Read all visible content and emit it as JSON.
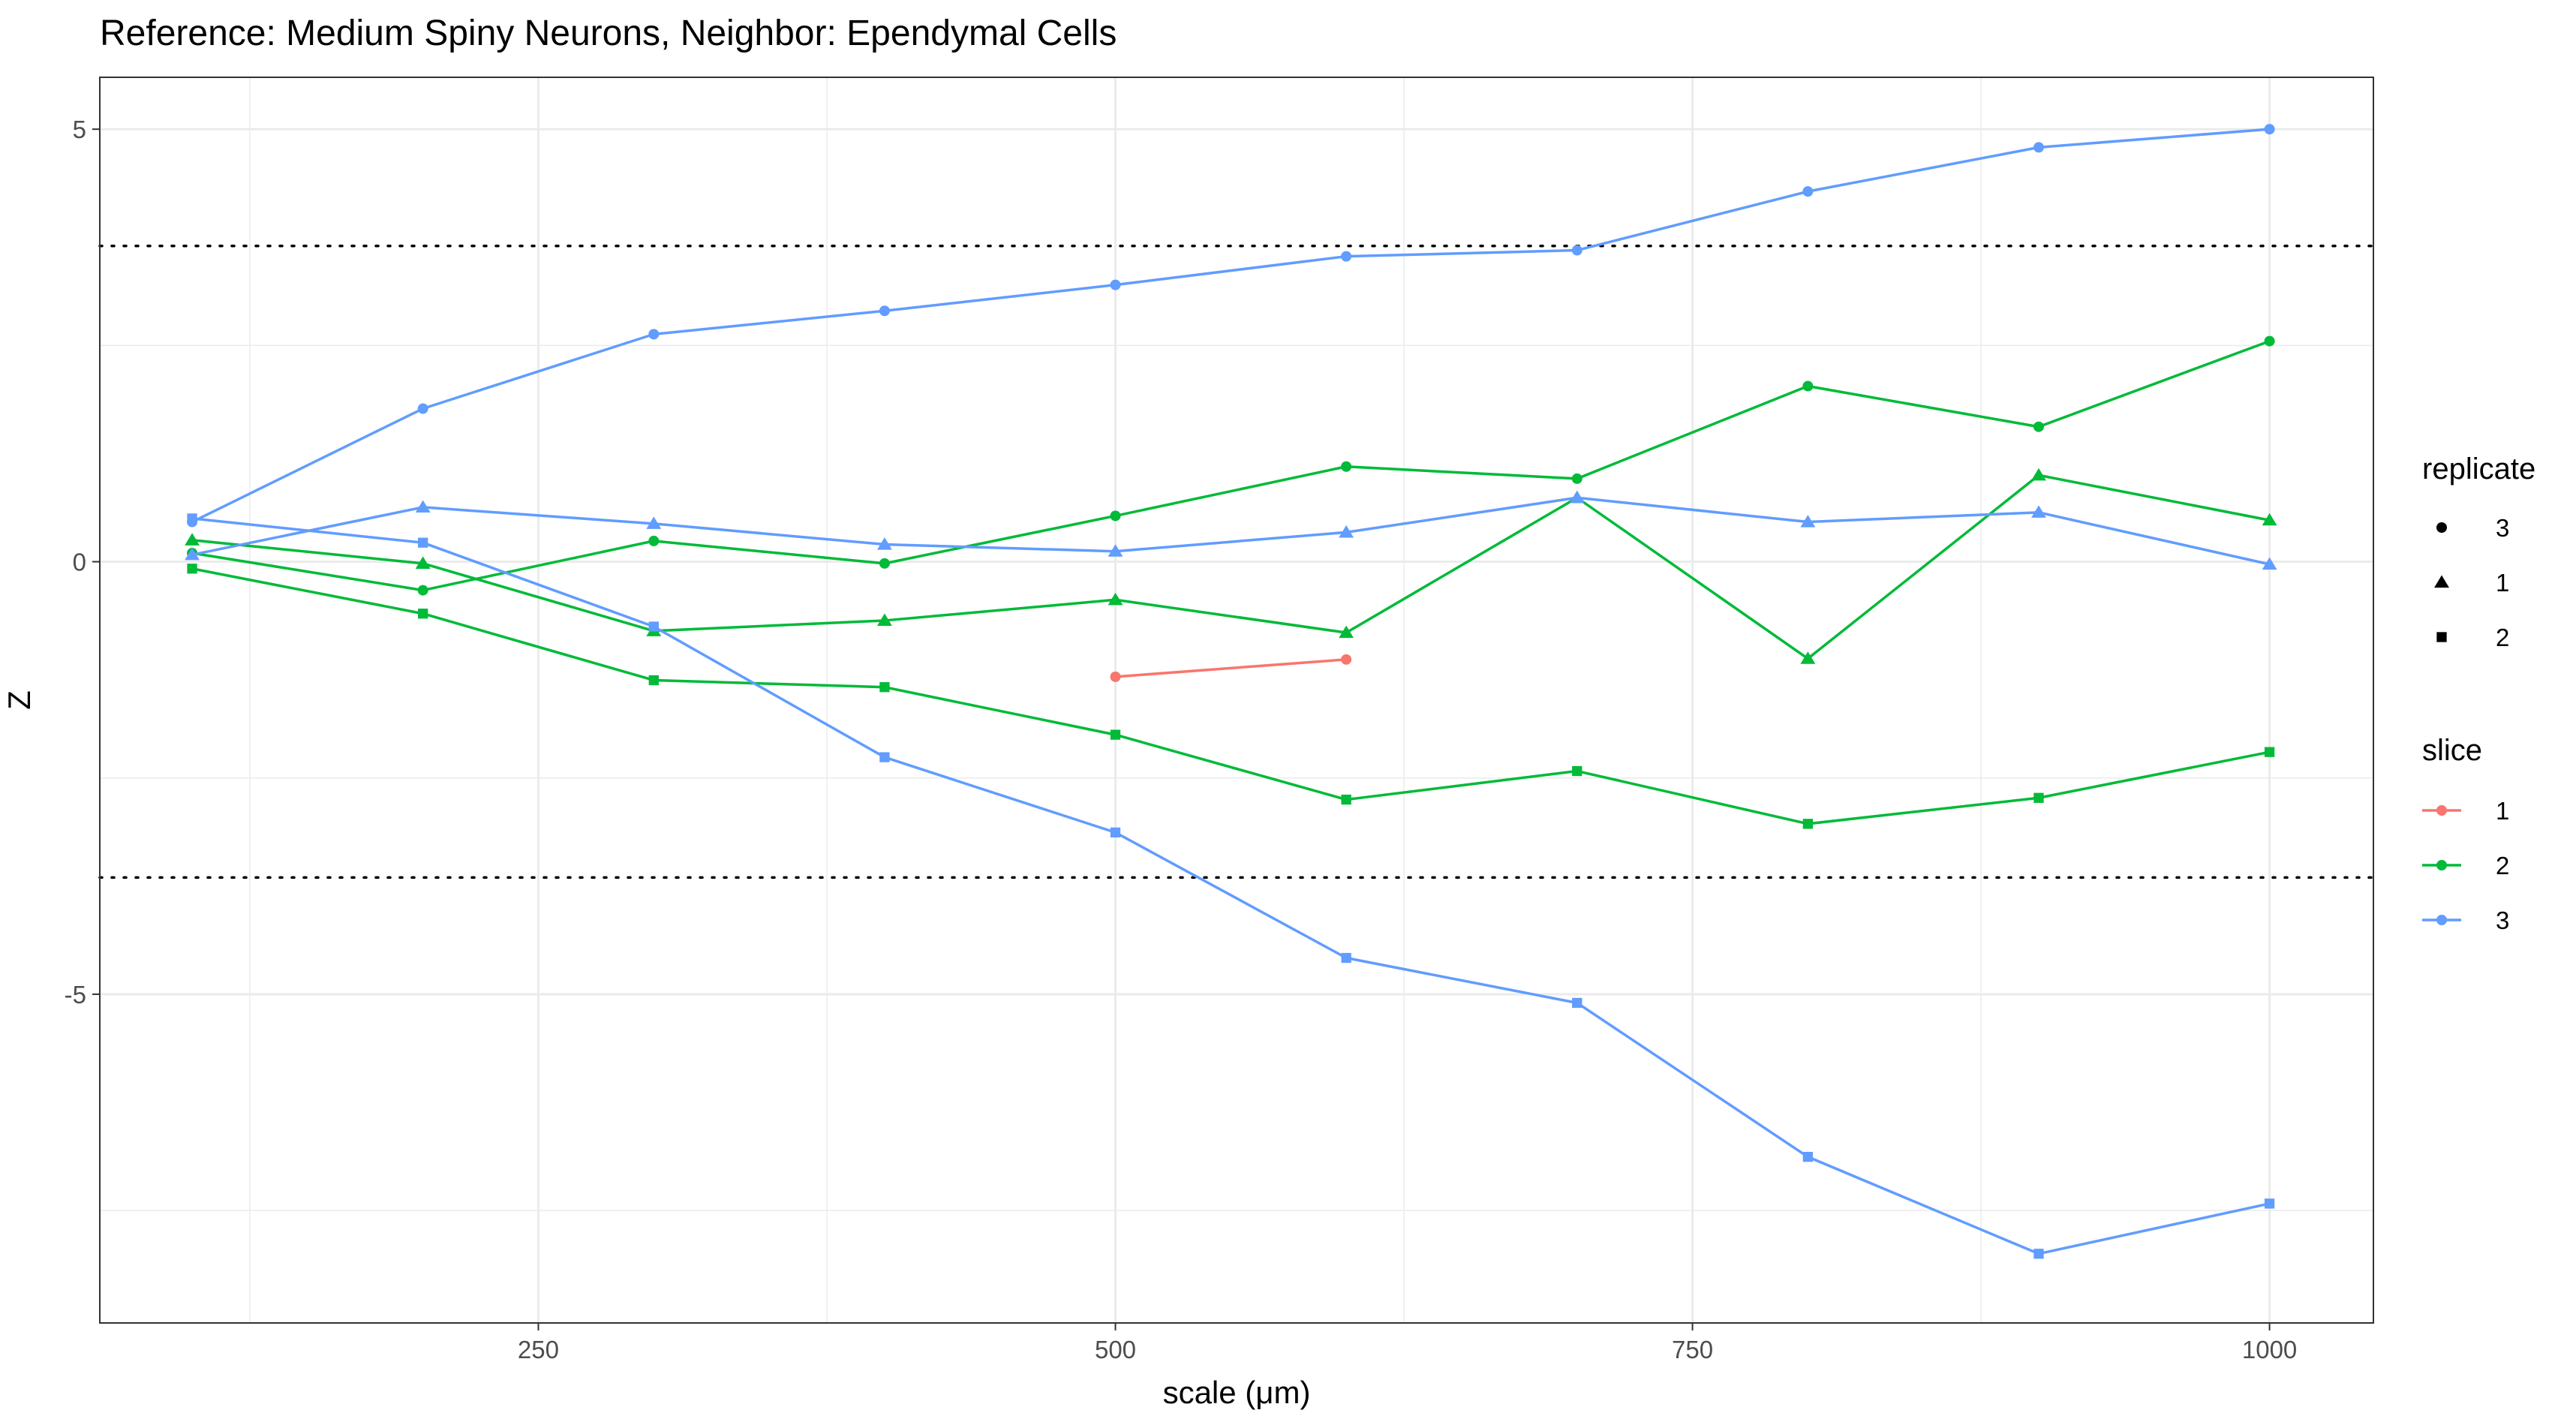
{
  "chart_data": {
    "type": "line",
    "title": "Reference: Medium Spiny Neurons, Neighbor: Ependymal Cells",
    "xlabel": "scale (μm)",
    "ylabel": "Z",
    "xlim": [
      60,
      1045
    ],
    "ylim": [
      -8.8,
      5.6
    ],
    "x_ticks": [
      250,
      500,
      750,
      1000
    ],
    "x_tick_labels": [
      "250",
      "500",
      "750",
      "1000"
    ],
    "y_ticks": [
      -5,
      0,
      5
    ],
    "y_tick_labels": [
      "-5",
      "0",
      "5"
    ],
    "grid": true,
    "hlines": [
      {
        "y": 3.65,
        "style": "dotted"
      },
      {
        "y": -3.65,
        "style": "dotted"
      }
    ],
    "legend": {
      "position": "right",
      "replicate": {
        "title": "replicate",
        "items": [
          {
            "label": "3",
            "shape": "circle"
          },
          {
            "label": "1",
            "shape": "triangle"
          },
          {
            "label": "2",
            "shape": "square"
          }
        ]
      },
      "slice": {
        "title": "slice",
        "items": [
          {
            "label": "1",
            "color": "#F8766D"
          },
          {
            "label": "2",
            "color": "#00BA38"
          },
          {
            "label": "3",
            "color": "#619CFF"
          }
        ]
      }
    },
    "series": [
      {
        "slice": "1",
        "replicate": "3",
        "color": "#F8766D",
        "shape": "circle",
        "x": [
          500,
          600
        ],
        "y": [
          -1.33,
          -1.13
        ]
      },
      {
        "slice": "2",
        "replicate": "3",
        "color": "#00BA38",
        "shape": "circle",
        "x": [
          100,
          200,
          300,
          400,
          500,
          600,
          700,
          800,
          900,
          1000
        ],
        "y": [
          0.1,
          -0.33,
          0.24,
          -0.02,
          0.53,
          1.1,
          0.96,
          2.03,
          1.56,
          2.55
        ]
      },
      {
        "slice": "2",
        "replicate": "1",
        "color": "#00BA38",
        "shape": "triangle",
        "x": [
          100,
          200,
          300,
          400,
          500,
          600,
          700,
          800,
          900,
          1000
        ],
        "y": [
          0.25,
          -0.02,
          -0.8,
          -0.68,
          -0.44,
          -0.82,
          0.74,
          -1.12,
          1.0,
          0.48
        ]
      },
      {
        "slice": "2",
        "replicate": "2",
        "color": "#00BA38",
        "shape": "square",
        "x": [
          100,
          200,
          300,
          400,
          500,
          600,
          700,
          800,
          900,
          1000
        ],
        "y": [
          -0.08,
          -0.6,
          -1.37,
          -1.45,
          -2.0,
          -2.75,
          -2.42,
          -3.03,
          -2.73,
          -2.2
        ]
      },
      {
        "slice": "3",
        "replicate": "3",
        "color": "#619CFF",
        "shape": "circle",
        "x": [
          100,
          200,
          300,
          400,
          500,
          600,
          700,
          800,
          900,
          1000
        ],
        "y": [
          0.46,
          1.77,
          2.63,
          2.9,
          3.2,
          3.53,
          3.6,
          4.28,
          4.79,
          5.0
        ]
      },
      {
        "slice": "3",
        "replicate": "1",
        "color": "#619CFF",
        "shape": "triangle",
        "x": [
          100,
          200,
          300,
          400,
          500,
          600,
          700,
          800,
          900,
          1000
        ],
        "y": [
          0.08,
          0.63,
          0.44,
          0.2,
          0.12,
          0.34,
          0.74,
          0.46,
          0.57,
          -0.03
        ]
      },
      {
        "slice": "3",
        "replicate": "2",
        "color": "#619CFF",
        "shape": "square",
        "x": [
          100,
          200,
          300,
          400,
          500,
          600,
          700,
          800,
          900,
          1000
        ],
        "y": [
          0.5,
          0.22,
          -0.75,
          -2.26,
          -3.13,
          -4.58,
          -5.1,
          -6.88,
          -8.0,
          -7.42
        ]
      }
    ]
  }
}
